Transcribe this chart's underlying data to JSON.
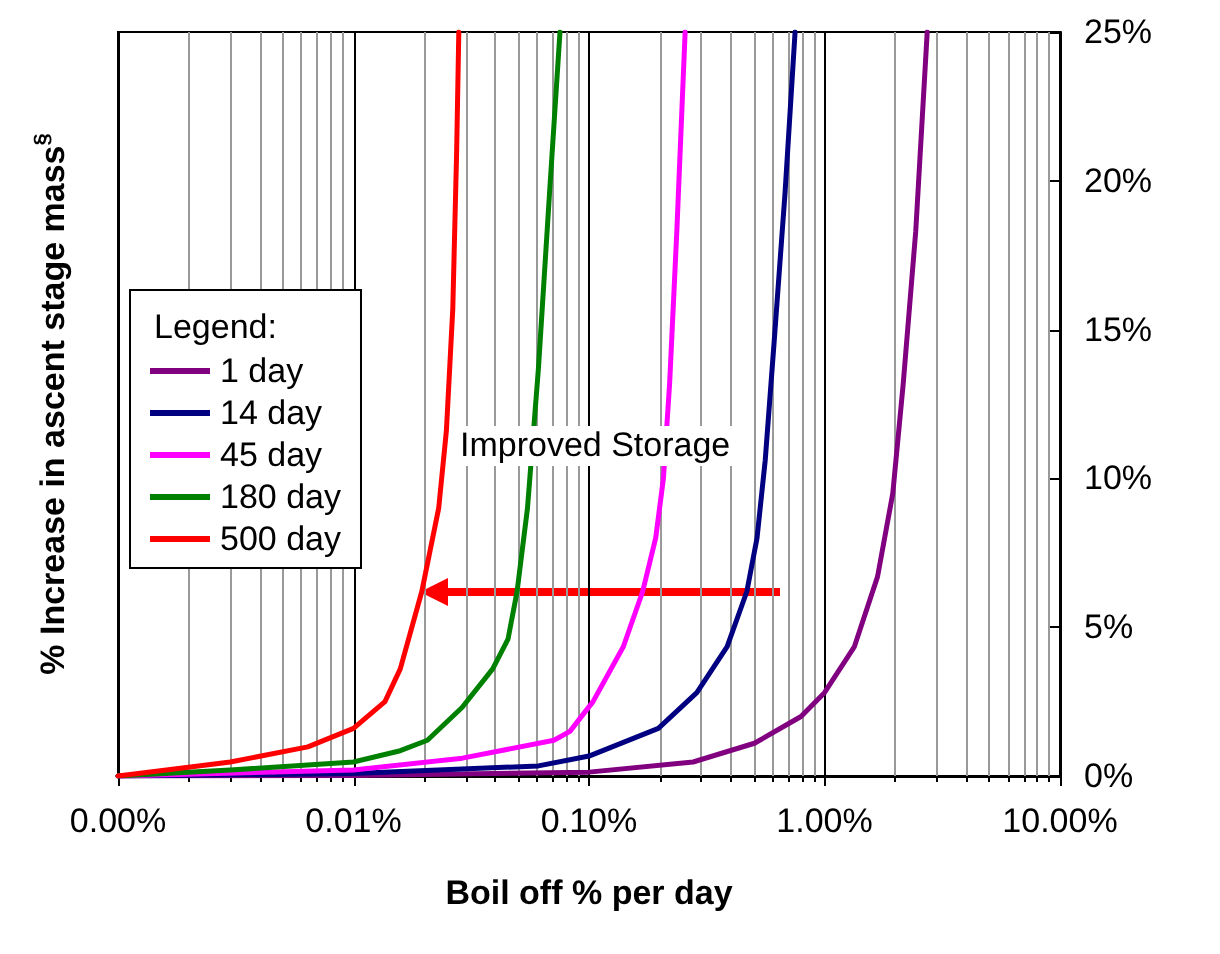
{
  "chart_data": {
    "type": "line",
    "xlabel": "Boil off % per day",
    "ylabel": "% Increase in ascent stage mass$^{§}$",
    "legend_title": "Legend:",
    "legend": "left",
    "grid": "x",
    "log": "x",
    "marker": "none",
    "line_style": "solid",
    "tick_labels": {
      "x": true,
      "y": true
    },
    "xlim": [
      0.001,
      10
    ],
    "xticks": [
      {
        "value": 0.001,
        "label": "0.00%"
      },
      {
        "value": 0.01,
        "label": "0.01%"
      },
      {
        "value": 0.1,
        "label": "0.10%"
      },
      {
        "value": 1,
        "label": "1.00%"
      },
      {
        "value": 10,
        "label": "10.00%"
      }
    ],
    "ylim": [
      0,
      25
    ],
    "yticks": [
      {
        "value": 0,
        "label": "0%"
      },
      {
        "value": 5,
        "label": "5%"
      },
      {
        "value": 10,
        "label": "10%"
      },
      {
        "value": 15,
        "label": "15%"
      },
      {
        "value": 20,
        "label": "20%"
      },
      {
        "value": 25,
        "label": "25%"
      }
    ],
    "annotations": [
      "Improved Storage"
    ],
    "series": [
      {
        "name": "1 day",
        "color": "#800080",
        "x": [
          0.001,
          0.01,
          0.1,
          0.277,
          0.504,
          0.795,
          1.0,
          1.34,
          1.68,
          1.95,
          2.16,
          2.44,
          2.73
        ],
        "values": [
          0,
          0.02,
          0.13,
          0.47,
          1.1,
          2.0,
          2.8,
          4.35,
          6.7,
          9.5,
          13.2,
          18.3,
          25
        ]
      },
      {
        "name": "14 day",
        "color": "#000080",
        "x": [
          0.001,
          0.01,
          0.061,
          0.1,
          0.197,
          0.287,
          0.386,
          0.468,
          0.517,
          0.56,
          0.61,
          0.68,
          0.75
        ],
        "values": [
          0,
          0.08,
          0.34,
          0.67,
          1.6,
          2.8,
          4.35,
          6.2,
          8.0,
          10.6,
          14.5,
          19.6,
          25
        ]
      },
      {
        "name": "45 day",
        "color": "#ff00ff",
        "x": [
          0.001,
          0.01,
          0.029,
          0.071,
          0.083,
          0.104,
          0.14,
          0.169,
          0.192,
          0.207,
          0.22,
          0.236,
          0.256
        ],
        "values": [
          0,
          0.2,
          0.6,
          1.2,
          1.5,
          2.5,
          4.35,
          6.2,
          8.0,
          10.0,
          13.2,
          18.3,
          25
        ]
      },
      {
        "name": "180 day",
        "color": "#008000",
        "x": [
          0.001,
          0.003,
          0.01,
          0.0158,
          0.0206,
          0.0289,
          0.039,
          0.0453,
          0.0495,
          0.0548,
          0.061,
          0.068,
          0.0753
        ],
        "values": [
          0,
          0.2,
          0.47,
          0.85,
          1.2,
          2.3,
          3.6,
          4.6,
          6.2,
          9.0,
          13.7,
          19.6,
          25
        ]
      },
      {
        "name": "500 day",
        "color": "#ff0000",
        "x": [
          0.001,
          0.003,
          0.0064,
          0.01,
          0.0136,
          0.0158,
          0.0195,
          0.023,
          0.0248,
          0.0264,
          0.0274,
          0.028
        ],
        "values": [
          0,
          0.47,
          0.98,
          1.6,
          2.5,
          3.6,
          6.2,
          9.0,
          11.6,
          15.7,
          20.9,
          25
        ]
      }
    ]
  }
}
